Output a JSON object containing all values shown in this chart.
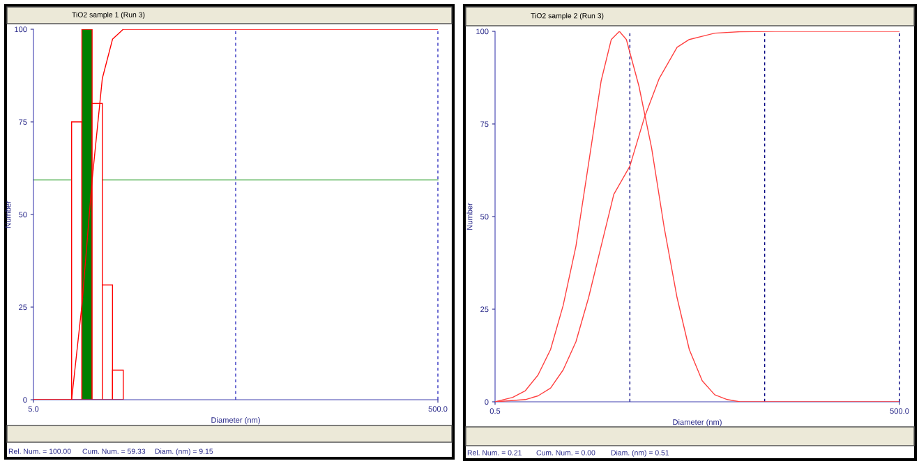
{
  "chart_data": [
    {
      "type": "histogram",
      "title": "TiO2 sample 1 (Run 3)",
      "xlabel": "Diameter (nm)",
      "ylabel": "Number",
      "log": "x",
      "xlim": [
        5,
        500
      ],
      "ylim": [
        0,
        100
      ],
      "xticks": [
        {
          "value": 5,
          "label": "5.0"
        },
        {
          "value": 500,
          "label": "500.0"
        }
      ],
      "yticks": [
        0,
        25,
        50,
        75,
        100
      ],
      "grid": false,
      "series": [
        {
          "color": "#ff0000",
          "bins": [
            7.72,
            8.68,
            9.75,
            10.95,
            12.3,
            13.9
          ],
          "values": [
            75,
            100,
            80,
            31,
            8
          ],
          "colors": [
            "#ffffff",
            "#008000",
            "#ffffff",
            "#ffffff",
            "#ffffff"
          ]
        },
        {
          "type": "line",
          "color": "#ff0000",
          "x": [
            5,
            7.72,
            8.68,
            9.75,
            10.95,
            12.3,
            13.9,
            500
          ],
          "values": [
            0,
            0,
            25.5,
            59.3,
            86.7,
            97.3,
            100,
            100
          ]
        }
      ],
      "ref_lines": [
        {
          "axis": "y",
          "value": 59.33,
          "color": "#2ca02c",
          "line_style": "solid"
        },
        {
          "axis": "x",
          "value": 50,
          "color": "#3030c0",
          "line_style": "dashed"
        },
        {
          "axis": "x",
          "value": 500,
          "color": "#3030c0",
          "line_style": "dashed"
        }
      ],
      "annotations": [
        "Rel. Num. = 100.00",
        "Cum. Num. = 59.33",
        "Diam. (nm) = 9.15"
      ]
    },
    {
      "type": "line",
      "title": "TiO2 sample 2 (Run 3)",
      "xlabel": "Diameter (nm)",
      "ylabel": "Number",
      "log": "x",
      "xlim": [
        0.5,
        500
      ],
      "ylim": [
        0,
        100
      ],
      "xticks": [
        {
          "value": 0.5,
          "label": "0.5"
        },
        {
          "value": 500,
          "label": "500.0"
        }
      ],
      "yticks": [
        0,
        25,
        50,
        75,
        100
      ],
      "grid": false,
      "series": [
        {
          "color": "#ff4040",
          "x": [
            0.5,
            0.676,
            0.839,
            1.04,
            1.29,
            1.6,
            1.99,
            2.47,
            3.06,
            3.64,
            4.18,
            4.71,
            5.84,
            7.25,
            9.0,
            11.2,
            13.8,
            17.2,
            21.3,
            26.4,
            32.8,
            500
          ],
          "values": [
            0,
            1.2,
            3.0,
            7.2,
            14.1,
            26.0,
            42.0,
            64.3,
            86.6,
            97.8,
            100,
            97.8,
            85.2,
            68.5,
            46.9,
            28.1,
            14.1,
            5.7,
            1.9,
            0.6,
            0,
            0
          ]
        },
        {
          "color": "#ff4040",
          "x": [
            0.5,
            0.839,
            1.04,
            1.29,
            1.6,
            1.99,
            2.47,
            3.06,
            3.8,
            5.0,
            6.43,
            8.26,
            11.2,
            13.8,
            21.3,
            32.8,
            60,
            500
          ],
          "values": [
            0,
            0.6,
            1.6,
            3.7,
            8.6,
            16.2,
            28.1,
            42.0,
            56.0,
            63.6,
            76.9,
            87.3,
            95.7,
            97.8,
            99.5,
            99.9,
            100,
            100
          ]
        }
      ],
      "ref_lines": [
        {
          "axis": "x",
          "value": 5,
          "color": "#000080",
          "line_style": "dashed"
        },
        {
          "axis": "x",
          "value": 50,
          "color": "#000080",
          "line_style": "dashed"
        },
        {
          "axis": "x",
          "value": 500,
          "color": "#000080",
          "line_style": "dashed"
        }
      ],
      "annotations": [
        "Rel. Num. = 0.21",
        "Cum. Num. = 0.00",
        "Diam. (nm) = 0.51"
      ]
    }
  ]
}
